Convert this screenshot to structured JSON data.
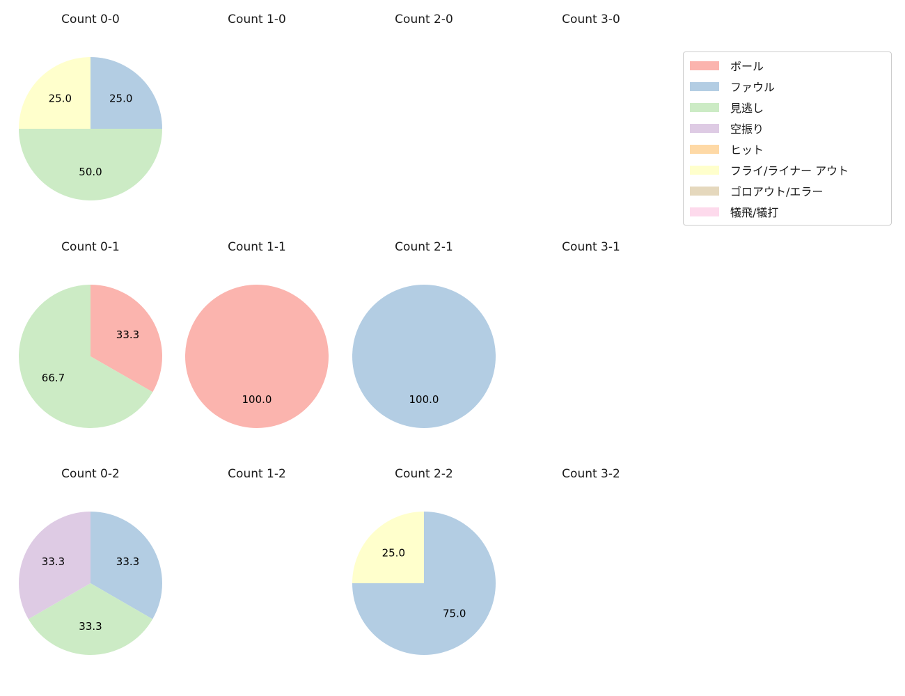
{
  "figure": {
    "background": "#ffffff"
  },
  "legend": {
    "position": "top-right",
    "items": [
      {
        "label": "ボール",
        "color": "#fbb4ae"
      },
      {
        "label": "ファウル",
        "color": "#b3cde3"
      },
      {
        "label": "見逃し",
        "color": "#ccebc5"
      },
      {
        "label": "空振り",
        "color": "#decbe4"
      },
      {
        "label": "ヒット",
        "color": "#fed9a6"
      },
      {
        "label": "フライ/ライナー アウト",
        "color": "#ffffcc"
      },
      {
        "label": "ゴロアウト/エラー",
        "color": "#e5d8bd"
      },
      {
        "label": "犠飛/犠打",
        "color": "#fddaec"
      }
    ]
  },
  "chart_data": [
    {
      "type": "pie",
      "title": "Count 0-0",
      "start_angle": 90,
      "direction": "clockwise",
      "slices": [
        {
          "label": "ファウル",
          "value": 25.0,
          "color": "#b3cde3"
        },
        {
          "label": "見逃し",
          "value": 50.0,
          "color": "#ccebc5"
        },
        {
          "label": "フライ/ライナー アウト",
          "value": 25.0,
          "color": "#ffffcc"
        }
      ]
    },
    {
      "type": "pie",
      "title": "Count 1-0",
      "start_angle": 90,
      "direction": "clockwise",
      "slices": []
    },
    {
      "type": "pie",
      "title": "Count 2-0",
      "start_angle": 90,
      "direction": "clockwise",
      "slices": []
    },
    {
      "type": "pie",
      "title": "Count 3-0",
      "start_angle": 90,
      "direction": "clockwise",
      "slices": []
    },
    {
      "type": "pie",
      "title": "Count 0-1",
      "start_angle": 90,
      "direction": "clockwise",
      "slices": [
        {
          "label": "ボール",
          "value": 33.3,
          "color": "#fbb4ae"
        },
        {
          "label": "見逃し",
          "value": 66.7,
          "color": "#ccebc5"
        }
      ]
    },
    {
      "type": "pie",
      "title": "Count 1-1",
      "start_angle": 90,
      "direction": "clockwise",
      "slices": [
        {
          "label": "ボール",
          "value": 100.0,
          "color": "#fbb4ae"
        }
      ]
    },
    {
      "type": "pie",
      "title": "Count 2-1",
      "start_angle": 90,
      "direction": "clockwise",
      "slices": [
        {
          "label": "ファウル",
          "value": 100.0,
          "color": "#b3cde3"
        }
      ]
    },
    {
      "type": "pie",
      "title": "Count 3-1",
      "start_angle": 90,
      "direction": "clockwise",
      "slices": []
    },
    {
      "type": "pie",
      "title": "Count 0-2",
      "start_angle": 90,
      "direction": "clockwise",
      "slices": [
        {
          "label": "ファウル",
          "value": 33.3,
          "color": "#b3cde3"
        },
        {
          "label": "見逃し",
          "value": 33.3,
          "color": "#ccebc5"
        },
        {
          "label": "空振り",
          "value": 33.3,
          "color": "#decbe4"
        }
      ]
    },
    {
      "type": "pie",
      "title": "Count 1-2",
      "start_angle": 90,
      "direction": "clockwise",
      "slices": []
    },
    {
      "type": "pie",
      "title": "Count 2-2",
      "start_angle": 90,
      "direction": "clockwise",
      "slices": [
        {
          "label": "ファウル",
          "value": 75.0,
          "color": "#b3cde3"
        },
        {
          "label": "フライ/ライナー アウト",
          "value": 25.0,
          "color": "#ffffcc"
        }
      ]
    },
    {
      "type": "pie",
      "title": "Count 3-2",
      "start_angle": 90,
      "direction": "clockwise",
      "slices": []
    }
  ]
}
